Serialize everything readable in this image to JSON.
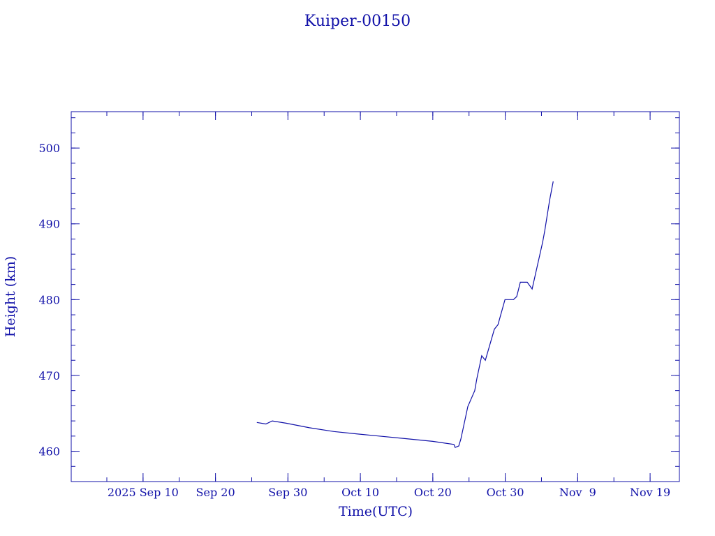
{
  "chart_data": {
    "type": "line",
    "title": "Kuiper-00150",
    "xlabel": "Time(UTC)",
    "ylabel": "Height (km)",
    "xlim": [
      "2025-08-31T02:00:00Z",
      "2025-11-23T01:00:00Z"
    ],
    "ylim": [
      456,
      504.8
    ],
    "grid": false,
    "color": "#1010a8",
    "x_ticks": [
      {
        "date": "2025-09-10",
        "label": "2025 Sep 10"
      },
      {
        "date": "2025-09-20",
        "label": "Sep 20"
      },
      {
        "date": "2025-09-30",
        "label": "Sep 30"
      },
      {
        "date": "2025-10-10",
        "label": "Oct 10"
      },
      {
        "date": "2025-10-20",
        "label": "Oct 20"
      },
      {
        "date": "2025-10-30",
        "label": "Oct 30"
      },
      {
        "date": "2025-11-09",
        "label": "Nov  9"
      },
      {
        "date": "2025-11-19",
        "label": "Nov 19"
      }
    ],
    "x_minor_tick_days": 5,
    "y_ticks": [
      {
        "value": 460,
        "label": "460"
      },
      {
        "value": 470,
        "label": "470"
      },
      {
        "value": 480,
        "label": "480"
      },
      {
        "value": 490,
        "label": "490"
      },
      {
        "value": 500,
        "label": "500"
      }
    ],
    "y_minor_tick_step": 2,
    "series": [
      {
        "x": [
          "2025-09-25T17:00:00Z",
          "2025-09-26T23:00:00Z",
          "2025-09-27T20:00:00Z",
          "2025-09-29T18:00:00Z",
          "2025-10-02T23:00:00Z",
          "2025-10-06T08:00:00Z",
          "2025-10-09T10:00:00Z",
          "2025-10-12T14:00:00Z",
          "2025-10-15T21:00:00Z",
          "2025-10-20T00:00:00Z",
          "2025-10-22T22:00:00Z",
          "2025-10-23T02:00:00Z",
          "2025-10-23T14:00:00Z",
          "2025-10-23T21:00:00Z",
          "2025-10-24T20:00:00Z",
          "2025-10-25T19:00:00Z",
          "2025-10-26T02:00:00Z",
          "2025-10-26T18:00:00Z",
          "2025-10-27T06:00:00Z",
          "2025-10-28T12:00:00Z",
          "2025-10-29T00:00:00Z",
          "2025-10-29T23:00:00Z",
          "2025-10-31T03:00:00Z",
          "2025-10-31T14:00:00Z",
          "2025-11-01T02:00:00Z",
          "2025-11-02T01:00:00Z",
          "2025-11-02T17:00:00Z",
          "2025-11-04T04:00:00Z",
          "2025-11-04T11:00:00Z",
          "2025-11-05T03:00:00Z",
          "2025-11-05T15:00:00Z"
        ],
        "y": [
          463.8,
          463.6,
          464.0,
          463.7,
          463.1,
          462.6,
          462.3,
          462.0,
          461.7,
          461.3,
          460.9,
          460.5,
          460.7,
          461.6,
          465.9,
          468.0,
          469.6,
          472.6,
          472.0,
          476.1,
          476.7,
          480.0,
          480.0,
          480.4,
          482.3,
          482.3,
          481.4,
          487.6,
          489.1,
          493.1,
          495.6
        ]
      }
    ]
  }
}
